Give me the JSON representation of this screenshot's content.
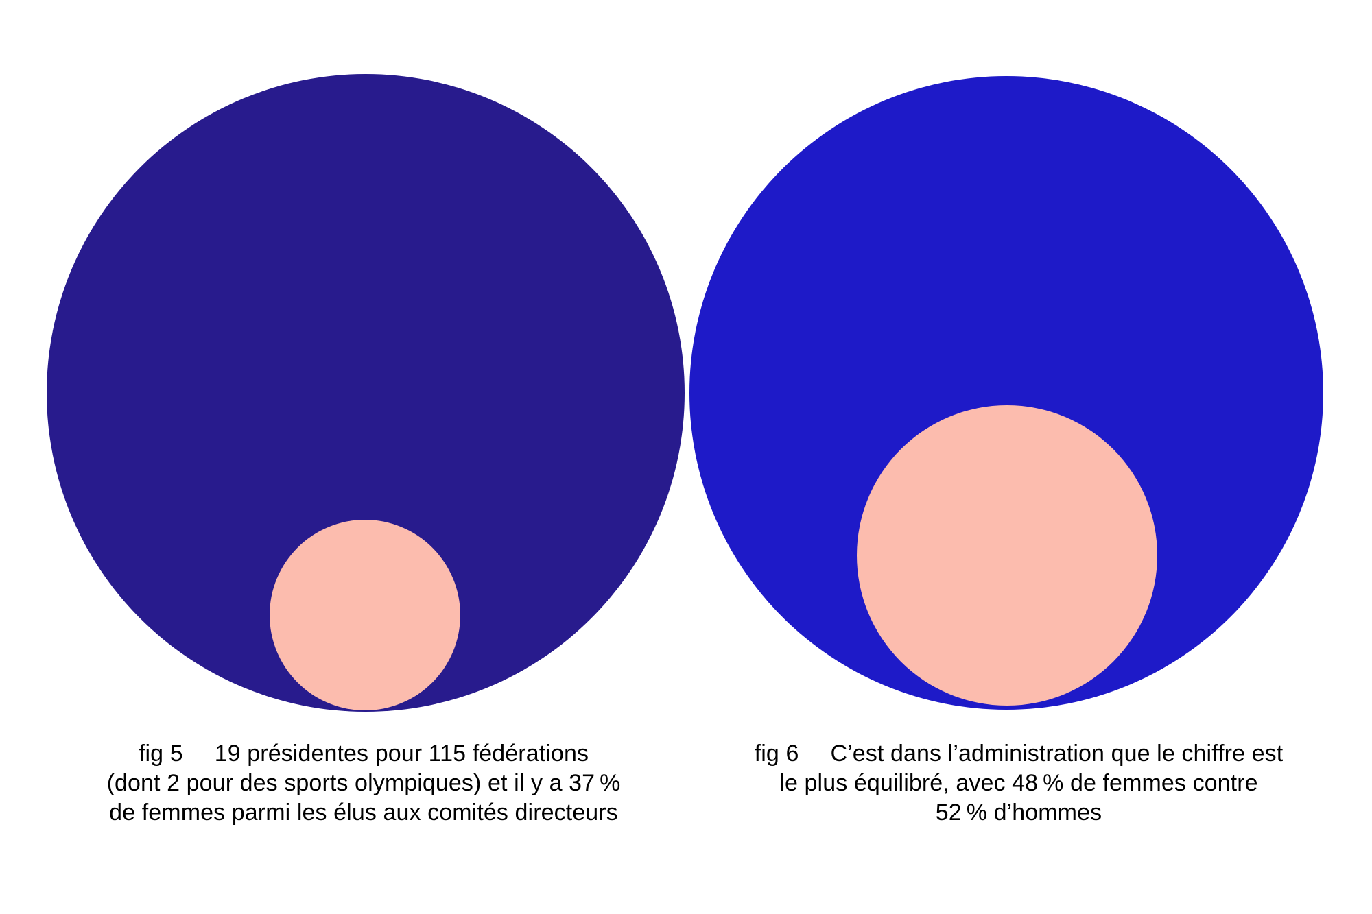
{
  "figures": [
    {
      "label": "fig 5",
      "lines": [
        "19 présidentes pour 115 fédérations",
        "(dont 2 pour des sports olympiques) et il y a 37 %",
        "de femmes parmi les élus aux comités directeurs"
      ]
    },
    {
      "label": "fig 6",
      "lines": [
        "C’est dans l’administration que le chiffre est",
        "le plus équilibré, avec 48 % de femmes contre",
        "52 % d’hommes"
      ]
    }
  ],
  "chart_data": [
    {
      "type": "proportional-circles",
      "fig": "fig 5",
      "title": "19 présidentes pour 115 fédérations (dont 2 pour des sports olympiques) et il y a 37 % de femmes parmi les élus aux comités directeurs",
      "series": [
        {
          "name": "fédérations (total)",
          "value": 115,
          "color": "#281b8d",
          "radius_px": 465
        },
        {
          "name": "présidentes (femmes)",
          "value": 19,
          "color": "#fcbcae",
          "radius_px": 139
        }
      ],
      "annotations": {
        "presidentes": 19,
        "federations": 115,
        "dont_sports_olympiques": 2,
        "femmes_comites_directeurs_pct": 37
      },
      "legend_position": "none",
      "grid": false
    },
    {
      "type": "proportional-circles",
      "fig": "fig 6",
      "title": "C’est dans l’administration que le chiffre est le plus équilibré, avec 48 % de femmes contre 52 % d’hommes",
      "series": [
        {
          "name": "hommes",
          "value": 52,
          "unit": "%",
          "color": "#1e1ac8",
          "radius_px": 462
        },
        {
          "name": "femmes",
          "value": 48,
          "unit": "%",
          "color": "#fcbcae",
          "radius_px": 219
        }
      ],
      "legend_position": "none",
      "grid": false
    }
  ],
  "colors": {
    "background": "#ffffff",
    "fig5_total": "#281b8d",
    "fig6_total": "#1e1ac8",
    "femmes": "#fcbcae",
    "caption_text": "#000000"
  }
}
